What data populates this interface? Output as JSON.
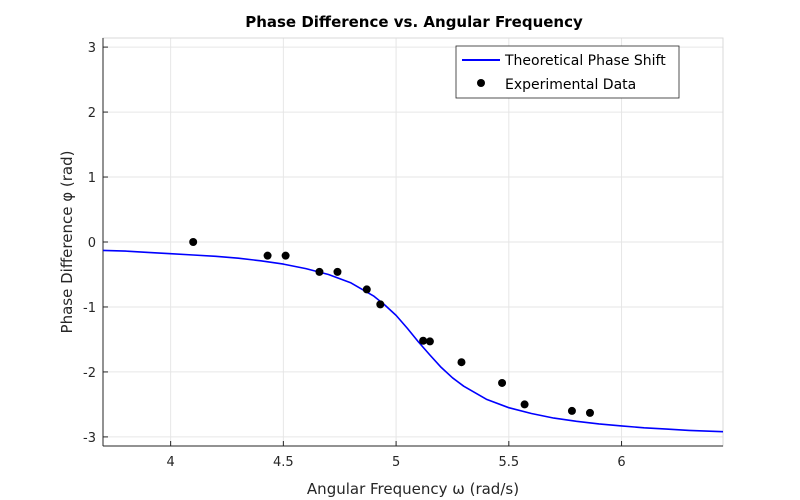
{
  "chart_data": {
    "type": "line",
    "title": "Phase Difference vs. Angular Frequency",
    "xlabel": "Angular Frequency ω (rad/s)",
    "ylabel": "Phase Difference φ (rad)",
    "xlim": [
      3.7,
      6.45
    ],
    "ylim": [
      -3.14,
      3.14
    ],
    "xticks": [
      4,
      4.5,
      5,
      5.5,
      6
    ],
    "xtick_labels": [
      "4",
      "4.5",
      "5",
      "5.5",
      "6"
    ],
    "yticks": [
      -3,
      -2,
      -1,
      0,
      1,
      2,
      3
    ],
    "ytick_labels": [
      "-3",
      "-2",
      "-1",
      "0",
      "1",
      "2",
      "3"
    ],
    "grid": true,
    "legend_position": "top-right",
    "series": [
      {
        "name": "Theoretical Phase Shift",
        "kind": "line",
        "color": "#0000ff",
        "x": [
          3.7,
          3.8,
          3.9,
          4.0,
          4.1,
          4.2,
          4.3,
          4.4,
          4.5,
          4.6,
          4.7,
          4.8,
          4.9,
          4.95,
          5.0,
          5.05,
          5.1,
          5.15,
          5.2,
          5.25,
          5.3,
          5.4,
          5.5,
          5.6,
          5.7,
          5.8,
          5.9,
          6.0,
          6.1,
          6.2,
          6.3,
          6.45
        ],
        "y": [
          -0.13,
          -0.14,
          -0.16,
          -0.18,
          -0.2,
          -0.22,
          -0.25,
          -0.29,
          -0.34,
          -0.41,
          -0.5,
          -0.63,
          -0.83,
          -0.97,
          -1.13,
          -1.33,
          -1.54,
          -1.74,
          -1.93,
          -2.09,
          -2.22,
          -2.42,
          -2.55,
          -2.64,
          -2.71,
          -2.76,
          -2.8,
          -2.83,
          -2.86,
          -2.88,
          -2.9,
          -2.92
        ]
      },
      {
        "name": "Experimental Data",
        "kind": "scatter",
        "color": "#000000",
        "x": [
          4.1,
          4.43,
          4.51,
          4.66,
          4.74,
          4.87,
          4.93,
          5.12,
          5.15,
          5.29,
          5.47,
          5.57,
          5.78,
          5.86
        ],
        "y": [
          0.0,
          -0.21,
          -0.21,
          -0.46,
          -0.46,
          -0.73,
          -0.96,
          -1.52,
          -1.53,
          -1.85,
          -2.17,
          -2.5,
          -2.6,
          -2.63
        ]
      }
    ]
  }
}
